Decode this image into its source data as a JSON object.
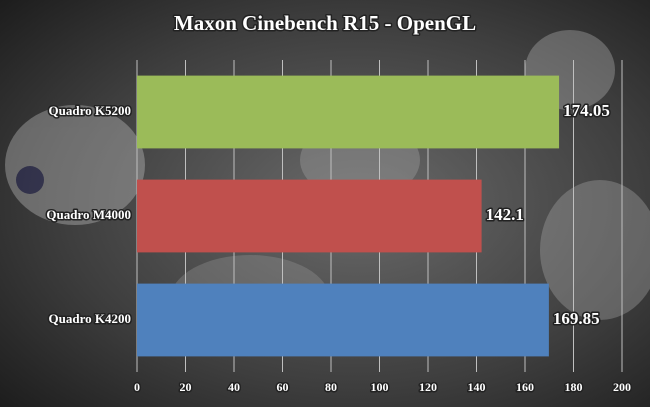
{
  "chart_data": {
    "type": "bar",
    "horizontal": true,
    "title": "Maxon Cinebench R15 - OpenGL",
    "categories": [
      "Quadro K5200",
      "Quadro M4000",
      "Quadro K4200"
    ],
    "values": [
      174.05,
      142.1,
      169.85
    ],
    "colors": [
      "#9bbb59",
      "#c0504d",
      "#4f81bd"
    ],
    "xlim": [
      0,
      200
    ],
    "xticks": [
      0,
      20,
      40,
      60,
      80,
      100,
      120,
      140,
      160,
      180,
      200
    ],
    "grid": true
  }
}
